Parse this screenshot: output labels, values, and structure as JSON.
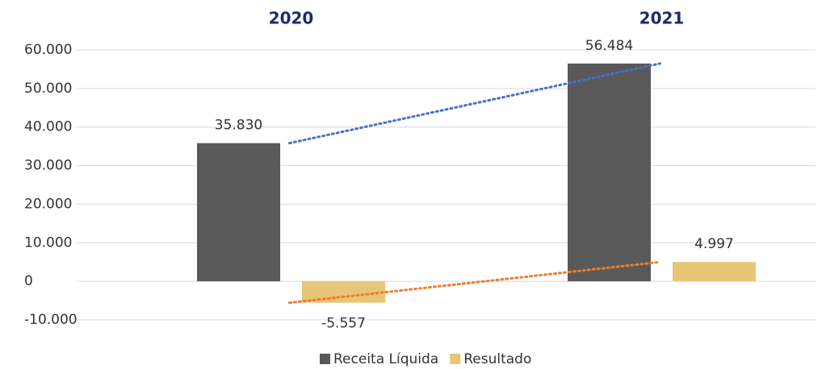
{
  "chart_data": {
    "type": "bar",
    "categories": [
      "2020",
      "2021"
    ],
    "series": [
      {
        "name": "Receita Líquida",
        "color": "#595959",
        "trend_color": "#4472c4",
        "values": [
          35830,
          56484
        ],
        "value_labels": [
          "35.830",
          "56.484"
        ]
      },
      {
        "name": "Resultado",
        "color": "#e8c677",
        "trend_color": "#ed7d31",
        "values": [
          -5557,
          4997
        ],
        "value_labels": [
          "-5.557",
          "4.997"
        ]
      }
    ],
    "ylim": [
      -10000,
      60000
    ],
    "yticks": [
      {
        "value": -10000,
        "label": "-10.000"
      },
      0,
      {
        "value": 10000,
        "label": "10.000"
      },
      {
        "value": 20000,
        "label": "20.000"
      },
      {
        "value": 30000,
        "label": "30.000"
      },
      {
        "value": 40000,
        "label": "40.000"
      },
      {
        "value": 50000,
        "label": "50.000"
      },
      {
        "value": 60000,
        "label": "60.000"
      }
    ],
    "grid": true,
    "trendlines": true,
    "legend": "bottom"
  }
}
